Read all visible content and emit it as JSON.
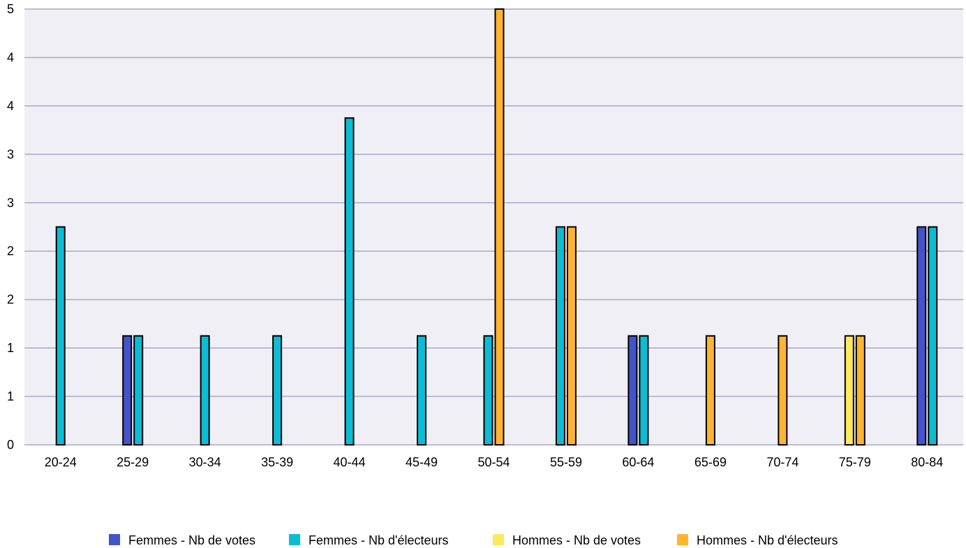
{
  "chart_data": {
    "type": "bar",
    "title": "",
    "xlabel": "",
    "ylabel": "",
    "ylim": [
      0,
      4
    ],
    "yticks": [
      "0",
      "1",
      "1",
      "2",
      "2",
      "3",
      "3",
      "4",
      "4",
      "5"
    ],
    "grid": true,
    "legend_position": "bottom",
    "categories": [
      "20-24",
      "25-29",
      "30-34",
      "35-39",
      "40-44",
      "45-49",
      "50-54",
      "55-59",
      "60-64",
      "65-69",
      "70-74",
      "75-79",
      "80-84"
    ],
    "series": [
      {
        "name": "Femmes - Nb de votes",
        "color": "#4553c9",
        "values": [
          0,
          1,
          0,
          0,
          0,
          0,
          0,
          0,
          1,
          0,
          0,
          0,
          2
        ]
      },
      {
        "name": "Femmes - Nb d'électeurs",
        "color": "#0cbcd4",
        "values": [
          2,
          1,
          1,
          1,
          3,
          1,
          1,
          2,
          1,
          0,
          0,
          0,
          2
        ]
      },
      {
        "name": "Hommes - Nb de votes",
        "color": "#fde95f",
        "values": [
          0,
          0,
          0,
          0,
          0,
          0,
          0,
          0,
          0,
          0,
          0,
          1,
          0
        ]
      },
      {
        "name": "Hommes - Nb d'électeurs",
        "color": "#ffb431",
        "values": [
          0,
          0,
          0,
          0,
          0,
          0,
          4,
          2,
          0,
          1,
          1,
          1,
          0
        ]
      }
    ]
  }
}
